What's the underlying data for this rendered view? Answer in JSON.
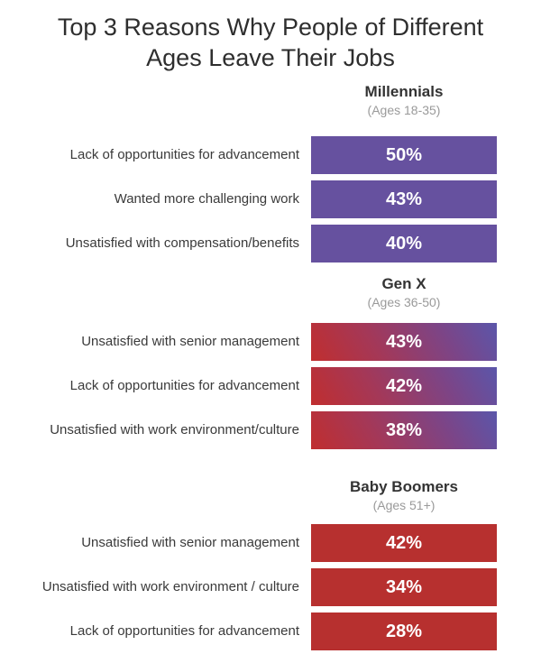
{
  "title": {
    "line1": "Top 3 Reasons Why People of Different",
    "line2": "Ages Leave Their Jobs"
  },
  "chart_data": {
    "type": "bar",
    "orientation": "horizontal",
    "unit": "percent",
    "title": "Top 3 Reasons Why People of Different Ages Leave Their Jobs",
    "layout_hints": {
      "bars_equal_length": true,
      "value_labels_inside_bars": true,
      "category_labels_right_aligned_left_of_bars": true,
      "grid": false,
      "axes": false
    },
    "groups": [
      {
        "name": "Millennials",
        "age_range": "(Ages 18-35)",
        "bar_style": "solid",
        "color": "#66519f",
        "bars": [
          {
            "label": "Lack of opportunities for advancement",
            "value": 50,
            "value_label": "50%"
          },
          {
            "label": "Wanted more challenging work",
            "value": 43,
            "value_label": "43%"
          },
          {
            "label": "Unsatisfied with compensation/benefits",
            "value": 40,
            "value_label": "40%"
          }
        ]
      },
      {
        "name": "Gen X",
        "age_range": "(Ages 36-50)",
        "bar_style": "gradient",
        "gradient_from": "#c02e2f",
        "gradient_to": "#5b56aa",
        "bars": [
          {
            "label": "Unsatisfied with senior management",
            "value": 43,
            "value_label": "43%"
          },
          {
            "label": "Lack of opportunities for advancement",
            "value": 42,
            "value_label": "42%"
          },
          {
            "label": "Unsatisfied with work environment/culture",
            "value": 38,
            "value_label": "38%"
          }
        ]
      },
      {
        "name": "Baby Boomers",
        "age_range": "(Ages 51+)",
        "bar_style": "solid",
        "color": "#b7302f",
        "bars": [
          {
            "label": "Unsatisfied with senior management",
            "value": 42,
            "value_label": "42%"
          },
          {
            "label": "Unsatisfied with work environment / culture",
            "value": 34,
            "value_label": "34%"
          },
          {
            "label": "Lack of opportunities for advancement",
            "value": 28,
            "value_label": "28%"
          }
        ]
      }
    ],
    "text_colors": {
      "title": "#2e2e2e",
      "group_name": "#333333",
      "group_age_range": "#9a9a9a",
      "bar_label": "#3a3a3a",
      "bar_value": "#ffffff"
    }
  }
}
